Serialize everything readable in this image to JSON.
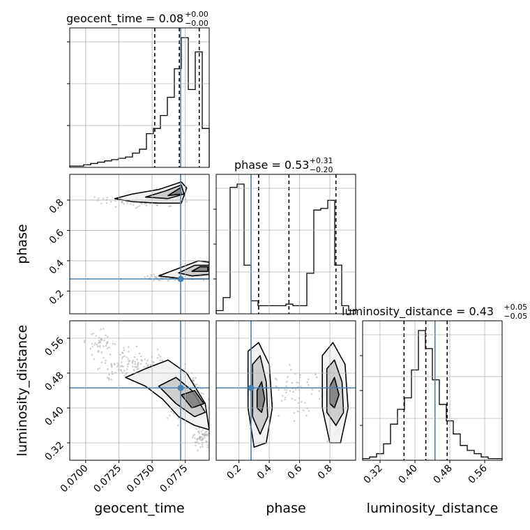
{
  "chart_data": {
    "type": "corner",
    "parameters": [
      {
        "name": "geocent_time",
        "range": [
          0.0688,
          0.0793
        ],
        "ticks": [
          "0.0700",
          "0.0725",
          "0.0750",
          "0.0775"
        ],
        "tick_values": [
          0.07,
          0.0725,
          0.075,
          0.0775
        ],
        "truth": 0.07715,
        "title": {
          "main": "geocent_time = 0.08",
          "sup": "+0.00",
          "sub": "−0.00"
        },
        "quantiles": [
          0.0752,
          0.07705,
          0.07855
        ]
      },
      {
        "name": "phase",
        "range": [
          0.05,
          0.97
        ],
        "ticks": [
          "0.2",
          "0.4",
          "0.6",
          "0.8"
        ],
        "tick_values": [
          0.2,
          0.4,
          0.6,
          0.8
        ],
        "truth": 0.28,
        "title": {
          "main": "phase = 0.53",
          "sup": "+0.31",
          "sub": "−0.20"
        },
        "quantiles": [
          0.33,
          0.53,
          0.84
        ]
      },
      {
        "name": "luminosity_distance",
        "range": [
          0.28,
          0.6
        ],
        "ticks": [
          "0.32",
          "0.40",
          "0.48",
          "0.56"
        ],
        "tick_values": [
          0.32,
          0.4,
          0.48,
          0.56
        ],
        "truth": 0.446,
        "title": {
          "main": "luminosity_distance = 0.43",
          "sup": "+0.05",
          "sub": "−0.05"
        },
        "quantiles": [
          0.375,
          0.425,
          0.474
        ]
      }
    ],
    "histograms": [
      {
        "param": "geocent_time",
        "counts": [
          1,
          1,
          2,
          3,
          4,
          5,
          6,
          7,
          8,
          11,
          14,
          26,
          30,
          40,
          54,
          76,
          100,
          60,
          89,
          30
        ]
      },
      {
        "param": "phase",
        "counts": [
          2,
          10,
          78,
          80,
          30,
          8,
          5,
          5,
          5,
          5,
          6,
          5,
          5,
          25,
          64,
          65,
          70,
          30,
          5,
          2
        ]
      },
      {
        "param": "luminosity_distance",
        "counts": [
          1,
          2,
          4,
          10,
          22,
          31,
          38,
          55,
          79,
          68,
          49,
          34,
          24,
          16,
          9,
          6,
          4,
          2,
          1,
          1
        ]
      }
    ],
    "scatter_2d": [
      {
        "x": "geocent_time",
        "y": "phase",
        "contours": [
          {
            "level": "outer",
            "points": [
              [
                0.0722,
                0.81
              ],
              [
                0.0735,
                0.84
              ],
              [
                0.0755,
                0.87
              ],
              [
                0.0772,
                0.92
              ],
              [
                0.0776,
                0.88
              ],
              [
                0.0772,
                0.78
              ],
              [
                0.0755,
                0.78
              ],
              [
                0.0735,
                0.79
              ]
            ]
          },
          {
            "level": "middle",
            "points": [
              [
                0.0745,
                0.82
              ],
              [
                0.076,
                0.86
              ],
              [
                0.0772,
                0.9
              ],
              [
                0.0774,
                0.84
              ],
              [
                0.0762,
                0.81
              ]
            ]
          },
          {
            "level": "inner",
            "points": [
              [
                0.0762,
                0.83
              ],
              [
                0.0771,
                0.88
              ],
              [
                0.0772,
                0.84
              ]
            ]
          },
          {
            "level": "outer",
            "points": [
              [
                0.0755,
                0.3
              ],
              [
                0.077,
                0.35
              ],
              [
                0.0785,
                0.4
              ],
              [
                0.0793,
                0.39
              ],
              [
                0.0793,
                0.28
              ],
              [
                0.0775,
                0.28
              ]
            ]
          },
          {
            "level": "middle",
            "points": [
              [
                0.077,
                0.32
              ],
              [
                0.0782,
                0.37
              ],
              [
                0.0793,
                0.37
              ],
              [
                0.0793,
                0.31
              ],
              [
                0.078,
                0.3
              ]
            ]
          },
          {
            "level": "inner",
            "points": [
              [
                0.078,
                0.33
              ],
              [
                0.0786,
                0.36
              ],
              [
                0.0792,
                0.36
              ],
              [
                0.0792,
                0.33
              ]
            ]
          }
        ]
      },
      {
        "x": "geocent_time",
        "y": "luminosity_distance",
        "contours": [
          {
            "level": "outer",
            "points": [
              [
                0.073,
                0.47
              ],
              [
                0.0745,
                0.49
              ],
              [
                0.0762,
                0.51
              ],
              [
                0.0776,
                0.48
              ],
              [
                0.079,
                0.41
              ],
              [
                0.0793,
                0.35
              ],
              [
                0.0782,
                0.36
              ],
              [
                0.077,
                0.38
              ],
              [
                0.0758,
                0.42
              ],
              [
                0.0745,
                0.45
              ]
            ]
          },
          {
            "level": "middle",
            "points": [
              [
                0.0755,
                0.45
              ],
              [
                0.0768,
                0.47
              ],
              [
                0.078,
                0.44
              ],
              [
                0.079,
                0.39
              ],
              [
                0.0782,
                0.38
              ],
              [
                0.0768,
                0.41
              ]
            ]
          },
          {
            "level": "inner",
            "points": [
              [
                0.0772,
                0.43
              ],
              [
                0.0782,
                0.44
              ],
              [
                0.0789,
                0.41
              ],
              [
                0.078,
                0.4
              ]
            ]
          }
        ]
      },
      {
        "x": "phase",
        "y": "luminosity_distance",
        "contours": [
          {
            "level": "outer",
            "points": [
              [
                0.26,
                0.53
              ],
              [
                0.33,
                0.55
              ],
              [
                0.4,
                0.5
              ],
              [
                0.42,
                0.4
              ],
              [
                0.38,
                0.32
              ],
              [
                0.3,
                0.31
              ],
              [
                0.26,
                0.4
              ]
            ]
          },
          {
            "level": "middle",
            "points": [
              [
                0.29,
                0.5
              ],
              [
                0.34,
                0.52
              ],
              [
                0.38,
                0.46
              ],
              [
                0.39,
                0.38
              ],
              [
                0.34,
                0.34
              ],
              [
                0.29,
                0.38
              ]
            ]
          },
          {
            "level": "inner",
            "points": [
              [
                0.32,
                0.44
              ],
              [
                0.35,
                0.46
              ],
              [
                0.37,
                0.42
              ],
              [
                0.35,
                0.39
              ],
              [
                0.32,
                0.4
              ]
            ]
          },
          {
            "level": "outer",
            "points": [
              [
                0.75,
                0.52
              ],
              [
                0.82,
                0.55
              ],
              [
                0.9,
                0.5
              ],
              [
                0.92,
                0.4
              ],
              [
                0.87,
                0.32
              ],
              [
                0.8,
                0.32
              ],
              [
                0.75,
                0.4
              ]
            ]
          },
          {
            "level": "middle",
            "points": [
              [
                0.78,
                0.49
              ],
              [
                0.83,
                0.51
              ],
              [
                0.88,
                0.46
              ],
              [
                0.89,
                0.39
              ],
              [
                0.84,
                0.36
              ],
              [
                0.78,
                0.39
              ]
            ]
          },
          {
            "level": "inner",
            "points": [
              [
                0.8,
                0.45
              ],
              [
                0.83,
                0.47
              ],
              [
                0.86,
                0.43
              ],
              [
                0.83,
                0.4
              ],
              [
                0.8,
                0.41
              ]
            ]
          }
        ]
      }
    ],
    "grid": true,
    "colors": {
      "truth": "#4682b4",
      "hist": "#000000",
      "quantile": "#000000",
      "contour": "#000000",
      "scatter": "#999999"
    }
  }
}
